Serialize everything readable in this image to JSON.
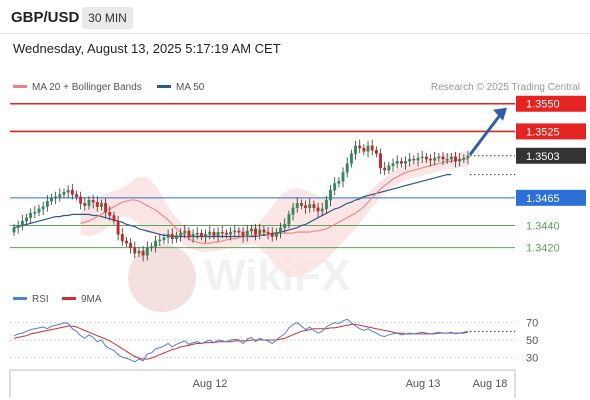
{
  "header": {
    "symbol": "GBP/USD",
    "timeframe": "30 MIN",
    "datetime": "Wednesday, August 13, 2025 5:17:19 AM CET"
  },
  "colors": {
    "bull": "#2e8b57",
    "bear": "#c62828",
    "resistance": "#e52421",
    "support_main": "#2d6fd6",
    "support_minor": "#5aa55a",
    "ma20": "#f08080",
    "ma50": "#2c5a8c",
    "rsi": "#4f81d8",
    "rsi_ma": "#d32f2f",
    "bands": "#fbe0e0",
    "pivot_badge": "#333333",
    "arrow": "#2f5ea8"
  },
  "chart_data": {
    "type": "candlestick",
    "legend": [
      {
        "name": "MA 20 + Bollinger Bands",
        "color": "#f08080"
      },
      {
        "name": "MA 50",
        "color": "#2c5a8c"
      }
    ],
    "source": "Research © 2025 Trading Central",
    "watermark": "WikiFX",
    "levels": [
      {
        "value": 1.355,
        "label": "1.3550",
        "kind": "resistance"
      },
      {
        "value": 1.3525,
        "label": "1.3525",
        "kind": "resistance"
      },
      {
        "value": 1.3503,
        "label": "1.3503",
        "kind": "pivot"
      },
      {
        "value": 1.3465,
        "label": "1.3465",
        "kind": "support"
      },
      {
        "value": 1.344,
        "label": "1.3440",
        "kind": "support-minor"
      },
      {
        "value": 1.342,
        "label": "1.3420",
        "kind": "support-minor"
      }
    ],
    "price_range": [
      1.3407,
      1.3557
    ],
    "x_labels": [
      "Aug 12",
      "Aug 13",
      "Aug 18"
    ],
    "close": [
      1.3438,
      1.344,
      1.3444,
      1.3447,
      1.3451,
      1.3452,
      1.3455,
      1.3457,
      1.3462,
      1.3465,
      1.3466,
      1.3468,
      1.347,
      1.3472,
      1.3468,
      1.3466,
      1.346,
      1.3458,
      1.3463,
      1.3461,
      1.3457,
      1.346,
      1.3452,
      1.3449,
      1.3444,
      1.3432,
      1.3426,
      1.3424,
      1.342,
      1.3415,
      1.3417,
      1.3413,
      1.342,
      1.3421,
      1.3426,
      1.3427,
      1.3429,
      1.3432,
      1.3428,
      1.3431,
      1.3433,
      1.3435,
      1.343,
      1.3432,
      1.3433,
      1.343,
      1.3432,
      1.3434,
      1.3431,
      1.3434,
      1.3433,
      1.3432,
      1.3434,
      1.3435,
      1.3434,
      1.343,
      1.3435,
      1.3437,
      1.3432,
      1.3436,
      1.3434,
      1.3433,
      1.343,
      1.3434,
      1.3438,
      1.3441,
      1.345,
      1.3456,
      1.346,
      1.3458,
      1.3456,
      1.3459,
      1.3456,
      1.3453,
      1.3455,
      1.3463,
      1.3472,
      1.3478,
      1.348,
      1.3488,
      1.3496,
      1.3505,
      1.3512,
      1.351,
      1.3507,
      1.3512,
      1.3508,
      1.3505,
      1.3492,
      1.349,
      1.3494,
      1.3496,
      1.3498,
      1.3496,
      1.3498,
      1.35,
      1.3499,
      1.3501,
      1.3502,
      1.35,
      1.3499,
      1.3501,
      1.3502,
      1.35,
      1.35,
      1.3502,
      1.3498,
      1.35,
      1.3501,
      1.3503
    ],
    "ma20": [
      1.3442,
      1.3443,
      1.3444,
      1.3446,
      1.3448,
      1.345,
      1.3453,
      1.3455,
      1.3457,
      1.3459,
      1.3461,
      1.3462,
      1.3463,
      1.3463,
      1.3462,
      1.346,
      1.3458,
      1.3456,
      1.3454,
      1.3451,
      1.3448,
      1.3445,
      1.3441,
      1.3437,
      1.3434,
      1.3431,
      1.3428,
      1.3426,
      1.3425,
      1.3424,
      1.3424,
      1.3424,
      1.3425,
      1.3425,
      1.3426,
      1.3427,
      1.3428,
      1.3428,
      1.3429,
      1.343,
      1.343,
      1.3431,
      1.3431,
      1.3431,
      1.3432,
      1.3432,
      1.3432,
      1.3432,
      1.3433,
      1.3433,
      1.3433,
      1.3433,
      1.3434,
      1.3434,
      1.3434,
      1.3434,
      1.3435,
      1.3435,
      1.3436,
      1.3437,
      1.3439,
      1.3441,
      1.3443,
      1.3445,
      1.3447,
      1.3449,
      1.3451,
      1.3454,
      1.3457,
      1.3461,
      1.3465,
      1.3469,
      1.3473,
      1.3476,
      1.3479,
      1.3482,
      1.3484,
      1.3486,
      1.3488,
      1.3489,
      1.349,
      1.3491,
      1.3492,
      1.3493,
      1.3494,
      1.3495,
      1.3496,
      1.3497,
      1.3498,
      1.3498,
      1.3499,
      1.3499,
      1.35,
      1.35
    ],
    "ma20_start_index": 16,
    "band_width": [
      0.0011,
      0.0012,
      0.0014,
      0.0015,
      0.0016,
      0.0016,
      0.0016,
      0.0015,
      0.0014,
      0.0013,
      0.0013,
      0.0014,
      0.0016,
      0.0019,
      0.0022,
      0.0024,
      0.0025,
      0.0024,
      0.0022,
      0.0019,
      0.0016,
      0.0013,
      0.0011,
      0.001,
      0.0009,
      0.0009,
      0.0008,
      0.0008,
      0.0008,
      0.0008,
      0.0008,
      0.0008,
      0.0008,
      0.0008,
      0.0008,
      0.0008,
      0.0008,
      0.0008,
      0.0008,
      0.0008,
      0.0008,
      0.0008,
      0.0009,
      0.0012,
      0.0016,
      0.002,
      0.0025,
      0.003,
      0.0034,
      0.0037,
      0.0039,
      0.004,
      0.004,
      0.0039,
      0.0038,
      0.0036,
      0.0034,
      0.0032,
      0.003,
      0.0028,
      0.0026,
      0.0024,
      0.0022,
      0.002,
      0.0018,
      0.0016,
      0.0014,
      0.0012,
      0.001,
      0.0009,
      0.0008,
      0.0008,
      0.0007,
      0.0007,
      0.0007,
      0.0007,
      0.0007,
      0.0007,
      0.0007,
      0.0007
    ],
    "ma50": [
      1.3438,
      1.3439,
      1.344,
      1.3441,
      1.3442,
      1.3443,
      1.3444,
      1.3445,
      1.3446,
      1.3447,
      1.3448,
      1.3448,
      1.3449,
      1.3449,
      1.345,
      1.345,
      1.345,
      1.345,
      1.345,
      1.3449,
      1.3449,
      1.3448,
      1.3447,
      1.3446,
      1.3445,
      1.3444,
      1.3443,
      1.3441,
      1.344,
      1.3439,
      1.3437,
      1.3436,
      1.3435,
      1.3434,
      1.3433,
      1.3432,
      1.3431,
      1.3431,
      1.343,
      1.343,
      1.343,
      1.343,
      1.343,
      1.343,
      1.343,
      1.343,
      1.343,
      1.343,
      1.343,
      1.343,
      1.343,
      1.343,
      1.343,
      1.343,
      1.343,
      1.343,
      1.343,
      1.343,
      1.343,
      1.3431,
      1.3431,
      1.3432,
      1.3433,
      1.3433,
      1.3434,
      1.3435,
      1.3436,
      1.3437,
      1.3438,
      1.344,
      1.3441,
      1.3443,
      1.3445,
      1.3447,
      1.3449,
      1.3451,
      1.3453,
      1.3455,
      1.3456,
      1.3458,
      1.346,
      1.3461,
      1.3463,
      1.3464,
      1.3466,
      1.3467,
      1.3468,
      1.3469,
      1.347,
      1.3471,
      1.3472,
      1.3473,
      1.3474,
      1.3475,
      1.3476,
      1.3477,
      1.3478,
      1.3479,
      1.348,
      1.3481,
      1.3482,
      1.3483,
      1.3484,
      1.3485,
      1.3486,
      1.3486
    ],
    "projection": {
      "from": 1.3503,
      "to": 1.355
    },
    "rsi_legend": [
      {
        "name": "RSI",
        "color": "#4f81d8"
      },
      {
        "name": "9MA",
        "color": "#d32f2f"
      }
    ],
    "rsi_levels": [
      70,
      50,
      30
    ],
    "rsi_range": [
      20,
      80
    ],
    "rsi": [
      55,
      57,
      58,
      60,
      62,
      63,
      64,
      65,
      63,
      66,
      67,
      68,
      70,
      69,
      63,
      60,
      55,
      52,
      56,
      53,
      48,
      50,
      43,
      40,
      38,
      33,
      30,
      29,
      27,
      25,
      28,
      26,
      34,
      35,
      40,
      41,
      43,
      46,
      42,
      45,
      47,
      49,
      45,
      47,
      48,
      46,
      48,
      50,
      47,
      50,
      49,
      48,
      50,
      51,
      50,
      46,
      51,
      53,
      48,
      52,
      50,
      49,
      46,
      50,
      54,
      57,
      64,
      68,
      70,
      66,
      62,
      65,
      61,
      58,
      60,
      65,
      68,
      70,
      69,
      72,
      74,
      70,
      66,
      63,
      61,
      63,
      60,
      58,
      55,
      54,
      56,
      57,
      58,
      56,
      57,
      58,
      57,
      58,
      59,
      58,
      57,
      58,
      59,
      58,
      58,
      59,
      57,
      58,
      59,
      60
    ],
    "rsi_ma": [
      52,
      53,
      54,
      55,
      57,
      58,
      59,
      60,
      61,
      62,
      63,
      64,
      65,
      66,
      66,
      65,
      63,
      61,
      59,
      57,
      55,
      53,
      51,
      49,
      46,
      43,
      40,
      37,
      34,
      31,
      29,
      28,
      28,
      29,
      31,
      33,
      35,
      37,
      39,
      40,
      42,
      43,
      44,
      45,
      46,
      46,
      47,
      47,
      47,
      48,
      48,
      48,
      48,
      49,
      49,
      49,
      49,
      50,
      50,
      50,
      50,
      50,
      50,
      50,
      51,
      52,
      54,
      56,
      58,
      60,
      61,
      62,
      63,
      63,
      63,
      63,
      64,
      64,
      65,
      66,
      67,
      68,
      68,
      67,
      66,
      65,
      64,
      63,
      62,
      61,
      60,
      59,
      58,
      58,
      57,
      57,
      57,
      57,
      57,
      57,
      57,
      57,
      58,
      58,
      58,
      58,
      58,
      58,
      58,
      59
    ]
  },
  "rsi_levels_label": [
    "70",
    "50",
    "30"
  ]
}
